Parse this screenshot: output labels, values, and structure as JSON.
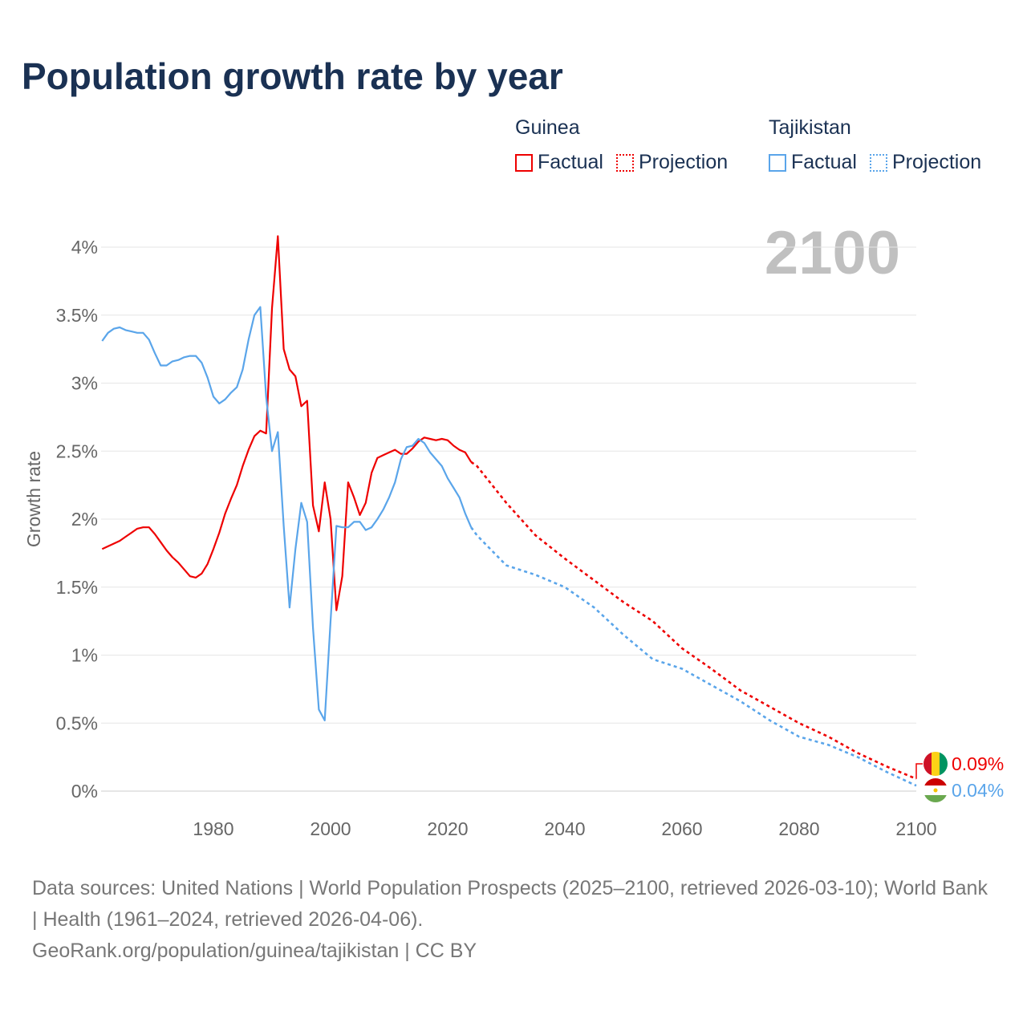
{
  "title": "Population growth rate by year",
  "current_year": "2100",
  "legend": [
    {
      "country": "Guinea",
      "color": "#ee0000",
      "factual": "Factual",
      "projection": "Projection"
    },
    {
      "country": "Tajikistan",
      "color": "#5aa5ea",
      "factual": "Factual",
      "projection": "Projection"
    }
  ],
  "source_lines": [
    "Data sources: United Nations | World Population Prospects (2025–2100, retrieved 2026-03-10); World Bank | Health (1961–2024, retrieved 2026-04-06).",
    "GeoRank.org/population/guinea/tajikistan | CC BY"
  ],
  "chart_data": {
    "type": "line",
    "title": "Population growth rate by year",
    "xlabel": "",
    "ylabel": "Growth rate",
    "xlim": [
      1961,
      2100
    ],
    "ylim": [
      0,
      4.1
    ],
    "x_ticks": [
      "1980",
      "2000",
      "2020",
      "2040",
      "2060",
      "2080",
      "2100"
    ],
    "y_ticks": [
      "0%",
      "0.5%",
      "1%",
      "1.5%",
      "2%",
      "2.5%",
      "3%",
      "3.5%",
      "4%"
    ],
    "grid": true,
    "series": [
      {
        "name": "Guinea",
        "color": "#ee0000",
        "end_label": "0.09%",
        "factual_start": 1961,
        "factual": [
          1.78,
          1.8,
          1.82,
          1.84,
          1.87,
          1.9,
          1.93,
          1.94,
          1.94,
          1.89,
          1.83,
          1.77,
          1.72,
          1.68,
          1.63,
          1.58,
          1.57,
          1.6,
          1.67,
          1.78,
          1.9,
          2.04,
          2.15,
          2.25,
          2.39,
          2.51,
          2.61,
          2.65,
          2.63,
          3.55,
          4.08,
          3.25,
          3.1,
          3.05,
          2.83,
          2.87,
          2.1,
          1.91,
          2.27,
          2.0,
          1.33,
          1.58,
          2.27,
          2.16,
          2.03,
          2.12,
          2.34,
          2.45,
          2.47,
          2.49,
          2.51,
          2.48,
          2.48,
          2.52,
          2.57,
          2.6,
          2.59,
          2.58,
          2.59,
          2.58,
          2.54,
          2.51,
          2.49,
          2.42
        ],
        "projection_years": [
          2024,
          2025,
          2030,
          2035,
          2040,
          2045,
          2050,
          2055,
          2060,
          2065,
          2070,
          2075,
          2080,
          2085,
          2090,
          2095,
          2100
        ],
        "projection": [
          2.42,
          2.39,
          2.12,
          1.88,
          1.71,
          1.55,
          1.39,
          1.25,
          1.05,
          0.9,
          0.74,
          0.62,
          0.5,
          0.4,
          0.28,
          0.18,
          0.09
        ]
      },
      {
        "name": "Tajikistan",
        "color": "#5aa5ea",
        "end_label": "0.04%",
        "factual_start": 1961,
        "factual": [
          3.31,
          3.37,
          3.4,
          3.41,
          3.39,
          3.38,
          3.37,
          3.37,
          3.32,
          3.22,
          3.13,
          3.13,
          3.16,
          3.17,
          3.19,
          3.2,
          3.2,
          3.15,
          3.04,
          2.9,
          2.85,
          2.88,
          2.93,
          2.97,
          3.1,
          3.32,
          3.5,
          3.56,
          2.9,
          2.5,
          2.64,
          1.95,
          1.35,
          1.78,
          2.12,
          1.98,
          1.2,
          0.6,
          0.52,
          1.25,
          1.95,
          1.94,
          1.94,
          1.98,
          1.98,
          1.92,
          1.94,
          2.0,
          2.07,
          2.16,
          2.27,
          2.44,
          2.53,
          2.54,
          2.59,
          2.56,
          2.49,
          2.44,
          2.39,
          2.3,
          2.23,
          2.16,
          2.04,
          1.94
        ],
        "projection_years": [
          2024,
          2025,
          2030,
          2035,
          2040,
          2045,
          2050,
          2055,
          2060,
          2065,
          2070,
          2075,
          2080,
          2085,
          2090,
          2095,
          2100
        ],
        "projection": [
          1.94,
          1.88,
          1.66,
          1.59,
          1.5,
          1.35,
          1.15,
          0.97,
          0.9,
          0.78,
          0.66,
          0.52,
          0.4,
          0.34,
          0.25,
          0.14,
          0.04
        ]
      }
    ]
  }
}
